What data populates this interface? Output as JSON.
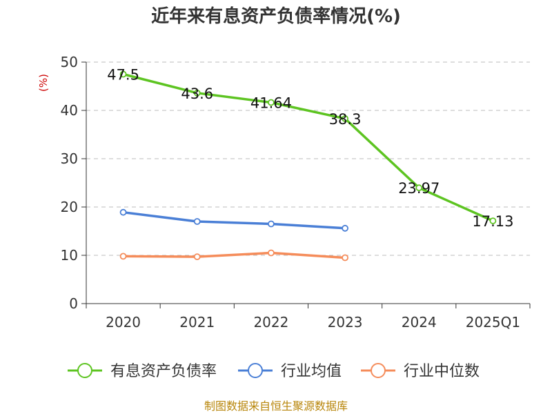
{
  "chart_data": {
    "type": "line",
    "title": "近年来有息资产负债率情况(%)",
    "ylabel": "(%)",
    "ylim": [
      0,
      50
    ],
    "yticks": [
      0,
      10,
      20,
      30,
      40,
      50
    ],
    "categories": [
      "2020",
      "2021",
      "2022",
      "2023",
      "2024",
      "2025Q1"
    ],
    "grid": true,
    "legend_position": "bottom",
    "series": [
      {
        "name": "有息资产负债率",
        "color": "#5dc421",
        "values": [
          47.5,
          43.6,
          41.64,
          38.3,
          23.97,
          17.13
        ],
        "labels": [
          "47.5",
          "43.6",
          "41.64",
          "38.3",
          "23.97",
          "17.13"
        ]
      },
      {
        "name": "行业均值",
        "color": "#4a7fd6",
        "values": [
          18.9,
          17.0,
          16.5,
          15.6,
          null,
          null
        ]
      },
      {
        "name": "行业中位数",
        "color": "#f58c5a",
        "values": [
          9.8,
          9.7,
          10.5,
          9.5,
          null,
          null
        ]
      }
    ]
  },
  "footer": {
    "source": "制图数据来自恒生聚源数据库"
  }
}
